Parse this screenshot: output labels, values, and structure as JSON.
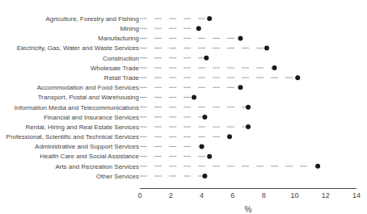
{
  "chart_data": {
    "type": "lollipop",
    "orientation": "horizontal",
    "categories": [
      "Other Services",
      "Arts and Recreation Services",
      "Health Care and Social Assistance",
      "Administrative and Support Services",
      "Professional, Scientific and Technical Services",
      "Rental, Hiring and Real Estate Services",
      "Financial and Insurance Services",
      "Information Media and Telecommunications",
      "Transport, Postal and Warehousing",
      "Accommodation and Food Services",
      "Retail Trade",
      "Wholesale Trade",
      "Construction",
      "Electricity, Gas, Water and Waste Services",
      "Manufacturing",
      "Mining",
      "Agriculture, Forestry and Fishing"
    ],
    "values": [
      4.2,
      11.5,
      4.5,
      4.0,
      5.8,
      7.0,
      4.2,
      7.0,
      3.5,
      6.5,
      10.2,
      8.7,
      4.3,
      8.2,
      6.5,
      3.8,
      4.5
    ],
    "xlabel": "%",
    "xlim": [
      0,
      14
    ],
    "xticks": [
      0,
      2,
      4,
      6,
      8,
      10,
      12,
      14
    ],
    "color": "#1a1a1a",
    "marker": "circle",
    "line_style": "dashed",
    "grid": false
  }
}
